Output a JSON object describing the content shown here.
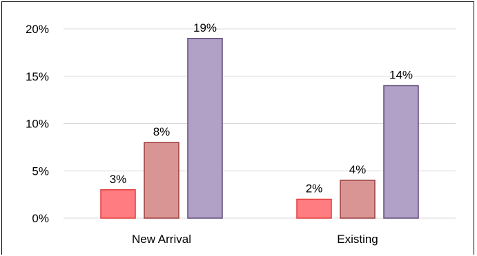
{
  "chart_data": {
    "type": "bar",
    "title": "",
    "xlabel": "",
    "ylabel": "",
    "categories": [
      "New Arrival",
      "Existing"
    ],
    "series": [
      {
        "values": [
          3,
          2
        ],
        "color": "#FF7C80",
        "stroke": "#E03C3C"
      },
      {
        "values": [
          8,
          4
        ],
        "color": "#D99594",
        "stroke": "#9C3C3C"
      },
      {
        "values": [
          19,
          14
        ],
        "color": "#B2A1C7",
        "stroke": "#5F4A7A"
      }
    ],
    "value_format": "percent",
    "data_labels": [
      [
        "3%",
        "2%"
      ],
      [
        "8%",
        "4%"
      ],
      [
        "19%",
        "14%"
      ]
    ],
    "ylim": [
      0,
      20
    ],
    "yticks": [
      0,
      5,
      10,
      15,
      20
    ],
    "ytick_labels": [
      "0%",
      "5%",
      "10%",
      "15%",
      "20%"
    ],
    "grid": true,
    "legend": "none"
  }
}
